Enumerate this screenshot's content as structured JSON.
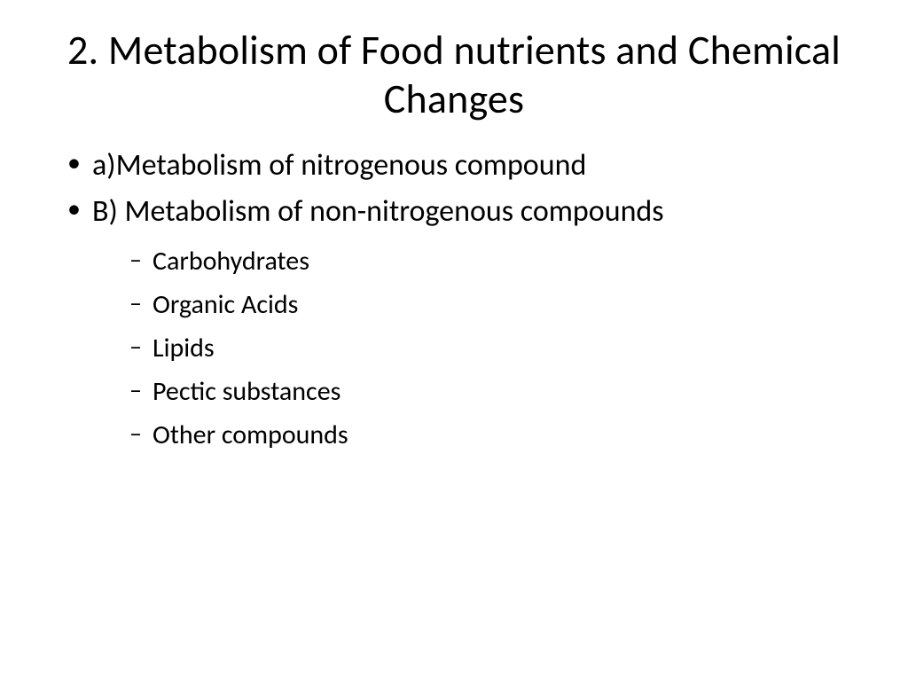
{
  "title": "2. Metabolism of Food nutrients and Chemical Changes",
  "bullets": {
    "item0": "a)Metabolism of nitrogenous compound",
    "item1": "B) Metabolism of non-nitrogenous compounds",
    "sub": {
      "s0": "Carbohydrates",
      "s1": "Organic Acids",
      "s2": "Lipids",
      "s3": "Pectic substances",
      "s4": "Other compounds"
    }
  },
  "style": {
    "background_color": "#ffffff",
    "text_color": "#000000",
    "font_family": "Calibri",
    "title_fontsize": 46,
    "title_weight": 400,
    "level1_fontsize": 34,
    "level2_fontsize": 30,
    "bullet_level1_char": "•",
    "bullet_level2_char": "–",
    "slide_width": 1024,
    "slide_height": 768
  }
}
